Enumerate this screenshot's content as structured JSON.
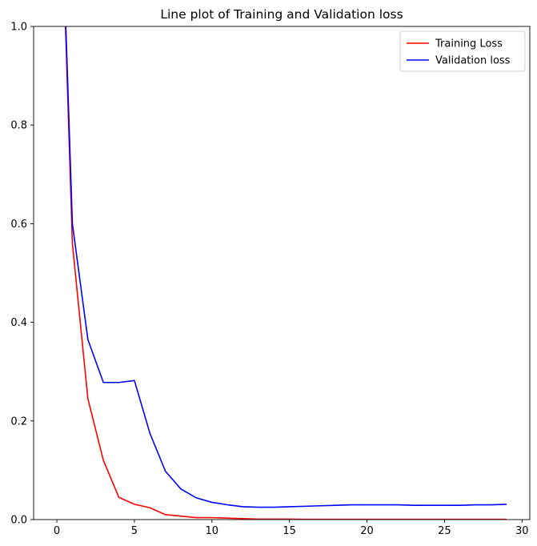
{
  "chart_data": {
    "type": "line",
    "title": "Line plot of Training and Validation loss",
    "xlabel": "",
    "ylabel": "",
    "xlim": [
      -1.5,
      30.5
    ],
    "ylim": [
      0,
      1
    ],
    "xticks": [
      0,
      5,
      10,
      15,
      20,
      25,
      30
    ],
    "yticks": [
      0.0,
      0.2,
      0.4,
      0.6,
      0.8,
      1.0
    ],
    "xtick_labels": [
      "0",
      "5",
      "10",
      "15",
      "20",
      "25",
      "30"
    ],
    "ytick_labels": [
      "0.0",
      "0.2",
      "0.4",
      "0.6",
      "0.8",
      "1.0"
    ],
    "grid": false,
    "legend_position": "top-right",
    "x": [
      0,
      1,
      2,
      3,
      4,
      5,
      6,
      7,
      8,
      9,
      10,
      11,
      12,
      13,
      14,
      15,
      16,
      17,
      18,
      19,
      20,
      21,
      22,
      23,
      24,
      25,
      26,
      27,
      28,
      29
    ],
    "series": [
      {
        "name": "Training Loss",
        "color": "#ff0000",
        "values": [
          1.55,
          0.56,
          0.245,
          0.12,
          0.045,
          0.031,
          0.024,
          0.01,
          0.007,
          0.004,
          0.004,
          0.003,
          0.002,
          0.001,
          0.001,
          0.001,
          0.0005,
          0.0005,
          0.0005,
          0.0005,
          0.0005,
          0.0005,
          0.0005,
          0.0005,
          0.0005,
          0.0005,
          0.0005,
          0.0005,
          0.0005,
          0.0005
        ]
      },
      {
        "name": "Validation loss",
        "color": "#0000ff",
        "values": [
          1.55,
          0.6,
          0.365,
          0.278,
          0.278,
          0.282,
          0.175,
          0.098,
          0.062,
          0.044,
          0.035,
          0.03,
          0.026,
          0.025,
          0.025,
          0.026,
          0.027,
          0.028,
          0.029,
          0.03,
          0.03,
          0.03,
          0.03,
          0.029,
          0.029,
          0.029,
          0.029,
          0.03,
          0.03,
          0.031
        ]
      }
    ]
  }
}
